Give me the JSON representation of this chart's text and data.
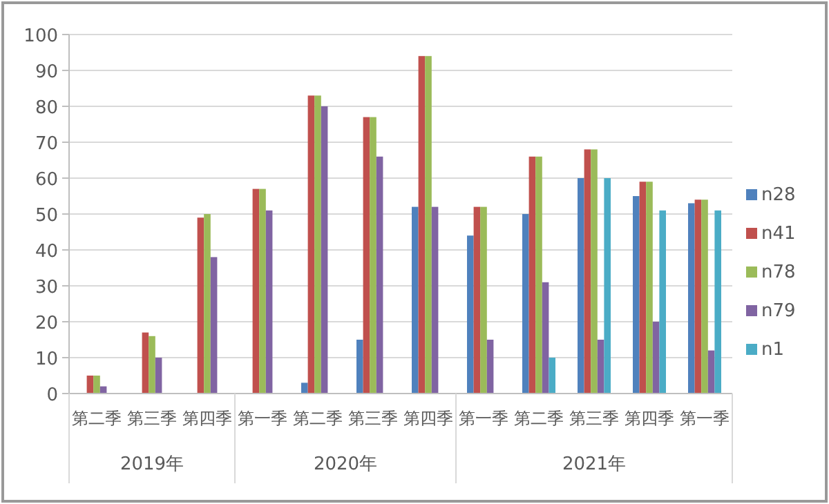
{
  "chart_data": {
    "type": "bar",
    "categories": [
      "第二季",
      "第三季",
      "第四季",
      "第一季",
      "第二季",
      "第三季",
      "第四季",
      "第一季",
      "第二季",
      "第三季",
      "第四季",
      "第一季"
    ],
    "series": [
      {
        "name": "n28",
        "color": "#4f81bd",
        "values": [
          null,
          null,
          null,
          null,
          3,
          15,
          52,
          44,
          50,
          60,
          55,
          53
        ]
      },
      {
        "name": "n41",
        "color": "#c0504d",
        "values": [
          5,
          17,
          49,
          57,
          83,
          77,
          94,
          52,
          66,
          68,
          59,
          54
        ]
      },
      {
        "name": "n78",
        "color": "#9bbb59",
        "values": [
          5,
          16,
          50,
          57,
          83,
          77,
          94,
          52,
          66,
          68,
          59,
          54
        ]
      },
      {
        "name": "n79",
        "color": "#8064a2",
        "values": [
          2,
          10,
          38,
          51,
          80,
          66,
          52,
          15,
          31,
          15,
          20,
          12
        ]
      },
      {
        "name": "n1",
        "color": "#4bacc6",
        "values": [
          null,
          null,
          null,
          null,
          null,
          null,
          null,
          null,
          10,
          60,
          51,
          51
        ]
      }
    ],
    "ylim": [
      0,
      100
    ],
    "yticks": [
      0,
      10,
      20,
      30,
      40,
      50,
      60,
      70,
      80,
      90,
      100
    ],
    "grid": "y",
    "legend": "right",
    "annotations": [
      "2019年",
      "2020年",
      "2021年"
    ]
  }
}
